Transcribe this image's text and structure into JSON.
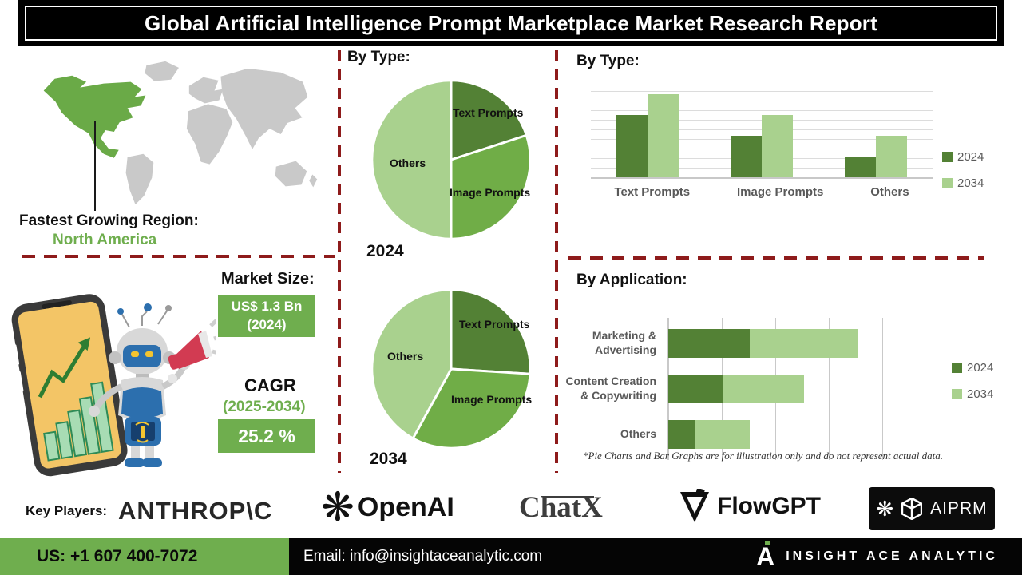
{
  "header": {
    "title": "Global Artificial Intelligence Prompt Marketplace Market Research Report"
  },
  "region": {
    "label": "Fastest Growing Region:",
    "value": "North America"
  },
  "market": {
    "heading": "Market Size:",
    "size_value": "US$ 1.3 Bn",
    "size_year": "(2024)",
    "cagr_label": "CAGR",
    "cagr_range": "(2025-2034)",
    "cagr_value": "25.2 %"
  },
  "sections": {
    "by_type_pies": "By Type:",
    "by_type_bars": "By Type:",
    "by_application": "By Application:",
    "footnote": "*Pie Charts and Bar Graphs are for illustration only and do not represent actual data."
  },
  "key_players": {
    "label": "Key Players:",
    "names": [
      "ANTHROP\\C",
      "OpenAI",
      "ChatX",
      "FlowGPT",
      "AIPRM"
    ]
  },
  "footer": {
    "phone": "US: +1 607 400-7072",
    "email": "Email: info@insightaceanalytic.com",
    "brand": "INSIGHT ACE ANALYTIC"
  },
  "colors": {
    "green_dark": "#538135",
    "green_mid": "#70ad47",
    "green_light": "#a9d18e",
    "accent_box": "#6fae4e",
    "dash_red": "#8e1b1b",
    "map_gray": "#c9c9c9"
  },
  "chart_data": [
    {
      "type": "pie",
      "title": "By Type: 2024",
      "year": "2024",
      "labels": [
        "Text Prompts",
        "Image Prompts",
        "Others"
      ],
      "values": [
        20,
        30,
        50
      ],
      "colors": [
        "#538135",
        "#70ad47",
        "#a9d18e"
      ],
      "note": "illustrative only"
    },
    {
      "type": "pie",
      "title": "By Type: 2034",
      "year": "2034",
      "labels": [
        "Text Prompts",
        "Image Prompts",
        "Others"
      ],
      "values": [
        26,
        32,
        42
      ],
      "colors": [
        "#538135",
        "#70ad47",
        "#a9d18e"
      ],
      "note": "illustrative only"
    },
    {
      "type": "bar",
      "title": "By Type:",
      "categories": [
        "Text Prompts",
        "Image Prompts",
        "Others"
      ],
      "series": [
        {
          "name": "2024",
          "values": [
            75,
            50,
            25
          ]
        },
        {
          "name": "2034",
          "values": [
            100,
            75,
            50
          ]
        }
      ],
      "ylim": [
        0,
        110
      ],
      "grid": true,
      "legend_position": "right",
      "note": "illustrative only, no axis labels shown"
    },
    {
      "type": "bar",
      "orientation": "horizontal",
      "stacked": true,
      "title": "By Application:",
      "categories": [
        "Marketing & Advertising",
        "Content Creation & Copywriting",
        "Others"
      ],
      "series": [
        {
          "name": "2024",
          "values": [
            30,
            20,
            10
          ]
        },
        {
          "name": "2034",
          "values": [
            40,
            30,
            20
          ]
        }
      ],
      "xlim": [
        0,
        80
      ],
      "grid": true,
      "legend_position": "right",
      "note": "illustrative only, no axis labels shown"
    }
  ]
}
